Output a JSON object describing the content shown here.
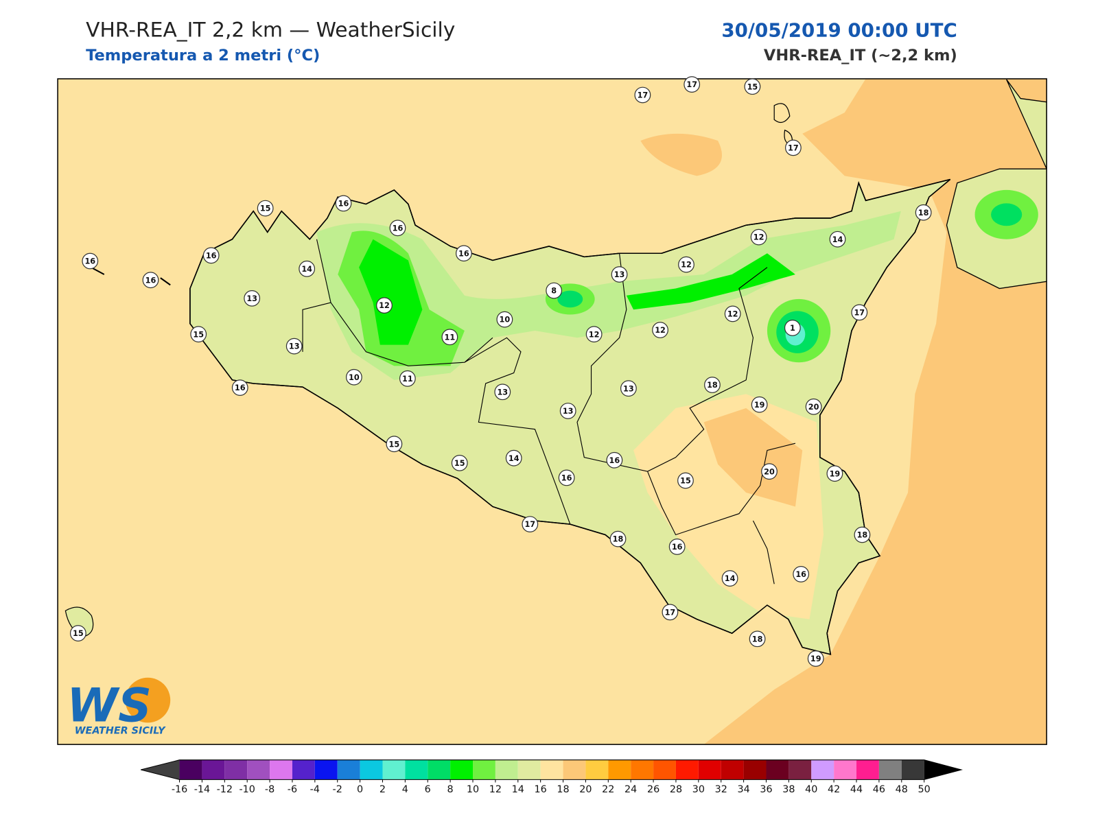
{
  "header": {
    "title": "VHR-REA_IT 2,2 km — WeatherSicily",
    "subtitle": "Temperatura a 2 metri (°C)",
    "datetime": "30/05/2019 00:00 UTC",
    "model": "VHR-REA_IT (~2,2 km)"
  },
  "stations": [
    17,
    17,
    15,
    17,
    15,
    16,
    16,
    16,
    16,
    16,
    16,
    14,
    13,
    12,
    15,
    13,
    16,
    10,
    11,
    11,
    10,
    8,
    12,
    13,
    12,
    12,
    14,
    18,
    17,
    12,
    1,
    12,
    18,
    13,
    13,
    13,
    19,
    20,
    15,
    15,
    14,
    16,
    16,
    15,
    20,
    19,
    17,
    18,
    16,
    18,
    16,
    14,
    17,
    18,
    19,
    15
  ],
  "colorbar": {
    "ticks": [
      -16,
      -14,
      -12,
      -10,
      -8,
      -6,
      -4,
      -2,
      0,
      2,
      4,
      6,
      8,
      10,
      12,
      14,
      16,
      18,
      20,
      22,
      24,
      26,
      28,
      30,
      32,
      34,
      36,
      38,
      40,
      42,
      44,
      46,
      48,
      50
    ],
    "colors": [
      "#4a0060",
      "#6a1696",
      "#7f2fa5",
      "#a050bf",
      "#dd77ee",
      "#5522cc",
      "#0a14f0",
      "#1a7fd8",
      "#0bc8e0",
      "#60f0d0",
      "#00e0a0",
      "#00dd66",
      "#00f000",
      "#70f040",
      "#c0ee90",
      "#e0eba0",
      "#ffe4a0",
      "#fcc878",
      "#ffcc40",
      "#ff9900",
      "#ff7700",
      "#ff5500",
      "#ff1a00",
      "#e00000",
      "#c00000",
      "#990000",
      "#6b0020",
      "#7a2040",
      "#d09bff",
      "#ff77cc",
      "#ff1e90",
      "#808080",
      "#383838"
    ],
    "under_color": "#404040",
    "over_color": "#000000"
  },
  "logo": {
    "mark": "WS",
    "text": "WEATHER SICILY"
  }
}
